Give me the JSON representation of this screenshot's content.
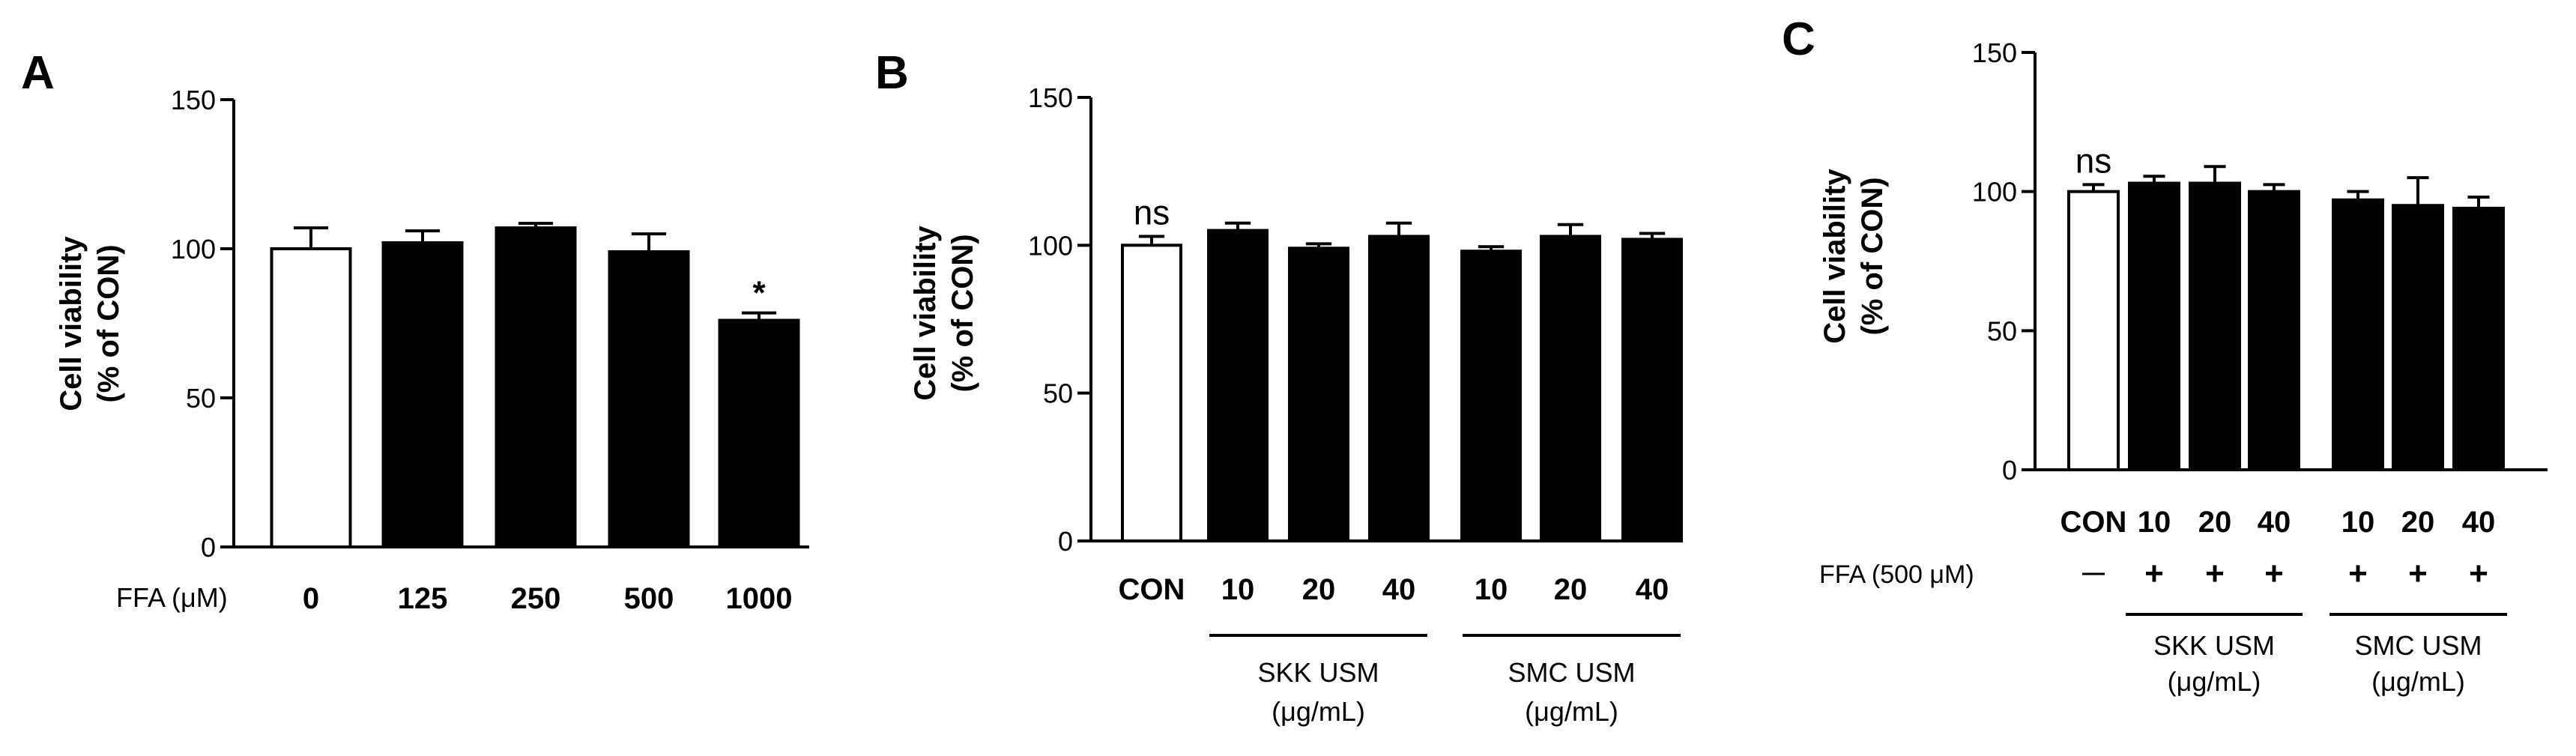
{
  "chart_data": [
    {
      "panel": "A",
      "type": "bar",
      "ylabel": [
        "Cell viability",
        "(% of CON)"
      ],
      "ylim": [
        0,
        150
      ],
      "yticks": [
        0,
        50,
        100,
        150
      ],
      "categories": [
        "0",
        "125",
        "250",
        "500",
        "1000"
      ],
      "row_label": "FFA (μM)",
      "values": [
        100,
        102,
        107,
        99,
        76
      ],
      "errors": [
        7,
        4,
        1.5,
        6,
        2.5
      ],
      "fills": [
        "#ffffff",
        "#000000",
        "#000000",
        "#000000",
        "#000000"
      ],
      "annotations": [
        {
          "index": 4,
          "text": "*"
        }
      ],
      "groups": []
    },
    {
      "panel": "B",
      "type": "bar",
      "ylabel": [
        "Cell viability",
        "(% of CON)"
      ],
      "ylim": [
        0,
        150
      ],
      "yticks": [
        0,
        50,
        100,
        150
      ],
      "categories": [
        "CON",
        "10",
        "20",
        "40",
        "10",
        "20",
        "40"
      ],
      "values": [
        100,
        105,
        99,
        103,
        98,
        103,
        102
      ],
      "errors": [
        3,
        2.5,
        1.5,
        4.5,
        1.5,
        4,
        2
      ],
      "fills": [
        "#ffffff",
        "#000000",
        "#000000",
        "#000000",
        "#000000",
        "#000000",
        "#000000"
      ],
      "annotations": [
        {
          "index": 0,
          "text": "ns"
        }
      ],
      "groups": [
        {
          "label": [
            "SKK USM",
            "(μg/mL)"
          ],
          "from": 1,
          "to": 3
        },
        {
          "label": [
            "SMC USM",
            "(μg/mL)"
          ],
          "from": 4,
          "to": 6
        }
      ]
    },
    {
      "panel": "C",
      "type": "bar",
      "ylabel": [
        "Cell viability",
        "(% of CON)"
      ],
      "ylim": [
        0,
        150
      ],
      "yticks": [
        0,
        50,
        100,
        150
      ],
      "categories": [
        "CON",
        "10",
        "20",
        "40",
        "10",
        "20",
        "40"
      ],
      "row_label": "FFA (500 μM)",
      "row_values": [
        "—",
        "+",
        "+",
        "+",
        "+",
        "+",
        "+"
      ],
      "values": [
        100,
        103,
        103,
        100,
        97,
        95,
        94
      ],
      "errors": [
        2.5,
        2.5,
        6,
        2.5,
        3,
        10,
        4
      ],
      "fills": [
        "#ffffff",
        "#000000",
        "#000000",
        "#000000",
        "#000000",
        "#000000",
        "#000000"
      ],
      "annotations": [
        {
          "index": 0,
          "text": "ns"
        }
      ],
      "groups": [
        {
          "label": [
            "SKK USM",
            "(μg/mL)"
          ],
          "from": 1,
          "to": 3
        },
        {
          "label": [
            "SMC USM",
            "(μg/mL)"
          ],
          "from": 4,
          "to": 6
        }
      ]
    }
  ]
}
